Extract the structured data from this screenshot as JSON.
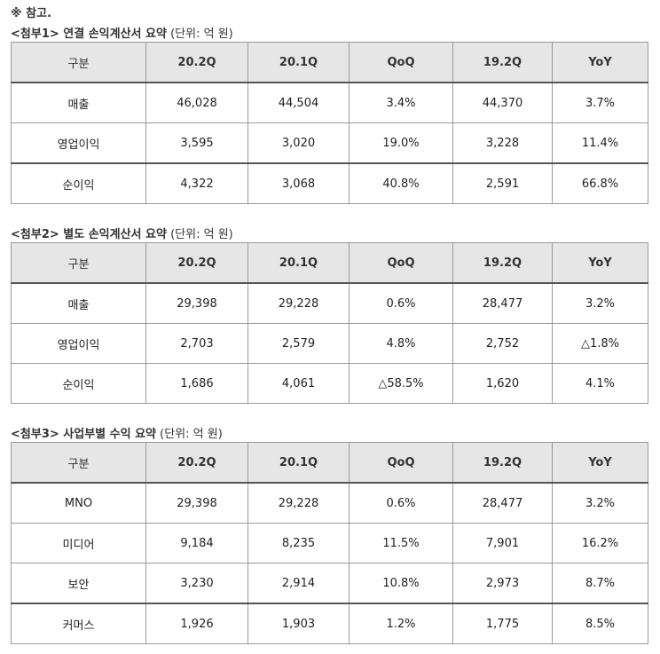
{
  "note": "※ 참고.",
  "tables": [
    {
      "title": "<첨부1> 연결 손익계산서 요약",
      "unit": " (단위: 억 원)",
      "headers": [
        "구분",
        "20.2Q",
        "20.1Q",
        "QoQ",
        "19.2Q",
        "YoY"
      ],
      "rows": [
        [
          "매출",
          "46,028",
          "44,504",
          "3.4%",
          "44,370",
          "3.7%"
        ],
        [
          "영업이익",
          "3,595",
          "3,020",
          "19.0%",
          "3,228",
          "11.4%"
        ],
        [
          "순이익",
          "4,322",
          "3,068",
          "40.8%",
          "2,591",
          "66.8%"
        ]
      ]
    },
    {
      "title": "<첨부2> 별도 손익계산서 요약",
      "unit": " (단위: 억 원)",
      "headers": [
        "구분",
        "20.2Q",
        "20.1Q",
        "QoQ",
        "19.2Q",
        "YoY"
      ],
      "rows": [
        [
          "매출",
          "29,398",
          "29,228",
          "0.6%",
          "28,477",
          "3.2%"
        ],
        [
          "영업이익",
          "2,703",
          "2,579",
          "4.8%",
          "2,752",
          "△1.8%"
        ],
        [
          "순이익",
          "1,686",
          "4,061",
          "△58.5%",
          "1,620",
          "4.1%"
        ]
      ]
    },
    {
      "title": "<첨부3> 사업부별 수익 요약",
      "unit": " (단위: 억 원)",
      "headers": [
        "구분",
        "20.2Q",
        "20.1Q",
        "QoQ",
        "19.2Q",
        "YoY"
      ],
      "rows": [
        [
          "MNO",
          "29,398",
          "29,228",
          "0.6%",
          "28,477",
          "3.2%"
        ],
        [
          "미디어",
          "9,184",
          "8,235",
          "11.5%",
          "7,901",
          "16.2%"
        ],
        [
          "보안",
          "3,230",
          "2,914",
          "10.8%",
          "2,973",
          "8.7%"
        ],
        [
          "커머스",
          "1,926",
          "1,903",
          "1.2%",
          "1,775",
          "8.5%"
        ]
      ]
    }
  ]
}
